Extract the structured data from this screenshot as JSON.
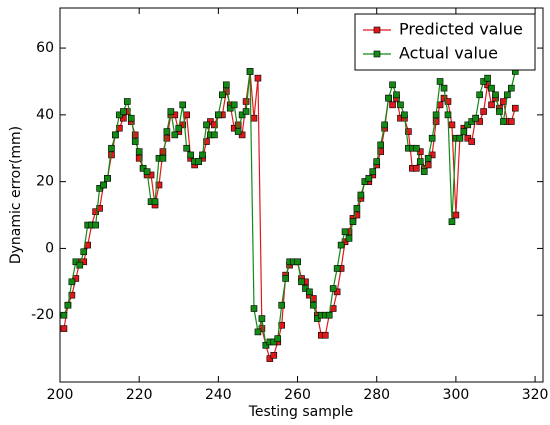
{
  "chart_data": {
    "type": "line",
    "xlabel": "Testing sample",
    "ylabel": "Dynamic error(mm)",
    "x": [
      201,
      202,
      203,
      204,
      205,
      206,
      207,
      208,
      209,
      210,
      211,
      212,
      213,
      214,
      215,
      216,
      217,
      218,
      219,
      220,
      221,
      222,
      223,
      224,
      225,
      226,
      227,
      228,
      229,
      230,
      231,
      232,
      233,
      234,
      235,
      236,
      237,
      238,
      239,
      240,
      241,
      242,
      243,
      244,
      245,
      246,
      247,
      248,
      249,
      250,
      251,
      252,
      253,
      254,
      255,
      256,
      257,
      258,
      259,
      260,
      261,
      262,
      263,
      264,
      265,
      266,
      267,
      268,
      269,
      270,
      271,
      272,
      273,
      274,
      275,
      276,
      277,
      278,
      279,
      280,
      281,
      282,
      283,
      284,
      285,
      286,
      287,
      288,
      289,
      290,
      291,
      292,
      293,
      294,
      295,
      296,
      297,
      298,
      299,
      300,
      301,
      302,
      303,
      304,
      305,
      306,
      307,
      308,
      309,
      310,
      311,
      312,
      313,
      314,
      315
    ],
    "series": [
      {
        "name": "Predicted value",
        "color": "#e0181c",
        "values": [
          -24,
          -17,
          -14,
          -9,
          -4,
          -4,
          1,
          7,
          11,
          12,
          19,
          21,
          28,
          34,
          36,
          39,
          41,
          38,
          34,
          27,
          24,
          22,
          22,
          13,
          19,
          29,
          33,
          40,
          40,
          35,
          37,
          40,
          27,
          25,
          26,
          27,
          32,
          38,
          37,
          40,
          40,
          47,
          43,
          36,
          37,
          34,
          44,
          53,
          39,
          51,
          -24,
          -29,
          -33,
          -32,
          -28,
          -23,
          -8,
          -5,
          -4,
          -4,
          -9,
          -10,
          -14,
          -15,
          -20,
          -26,
          -26,
          -20,
          -18,
          -13,
          -6,
          2,
          5,
          9,
          10,
          15,
          20,
          20,
          22,
          25,
          29,
          36,
          45,
          43,
          45,
          39,
          39,
          35,
          24,
          24,
          29,
          24,
          25,
          28,
          38,
          43,
          45,
          44,
          37,
          10,
          33,
          36,
          33,
          32,
          39,
          38,
          41,
          49,
          43,
          45,
          42,
          44,
          38,
          38,
          42
        ]
      },
      {
        "name": "Actual value",
        "color": "#138a13",
        "values": [
          -20,
          -17,
          -10,
          -4,
          -5,
          -1,
          7,
          7,
          7,
          18,
          19,
          21,
          30,
          34,
          40,
          41,
          44,
          39,
          32,
          29,
          24,
          23,
          14,
          14,
          27,
          27,
          35,
          41,
          34,
          36,
          43,
          30,
          28,
          26,
          26,
          28,
          37,
          34,
          34,
          40,
          46,
          49,
          42,
          43,
          35,
          40,
          41,
          53,
          -18,
          -25,
          -21,
          -29,
          -28,
          -28,
          -27,
          -17,
          -9,
          -4,
          -4,
          -4,
          -10,
          -12,
          -13,
          -17,
          -21,
          -20,
          -20,
          -20,
          -12,
          -6,
          1,
          5,
          3,
          8,
          12,
          16,
          20,
          21,
          23,
          26,
          31,
          37,
          45,
          49,
          46,
          43,
          40,
          30,
          30,
          30,
          26,
          23,
          27,
          33,
          40,
          50,
          48,
          40,
          8,
          33,
          33,
          35,
          37,
          38,
          39,
          46,
          50,
          51,
          48,
          46,
          41,
          38,
          46,
          48,
          53
        ]
      }
    ],
    "xlim": [
      200,
      322
    ],
    "ylim": [
      -40,
      72
    ],
    "xticks": [
      200,
      220,
      240,
      260,
      280,
      300,
      320
    ],
    "yticks": [
      -20,
      0,
      20,
      40,
      60
    ],
    "legend": "upper right"
  }
}
